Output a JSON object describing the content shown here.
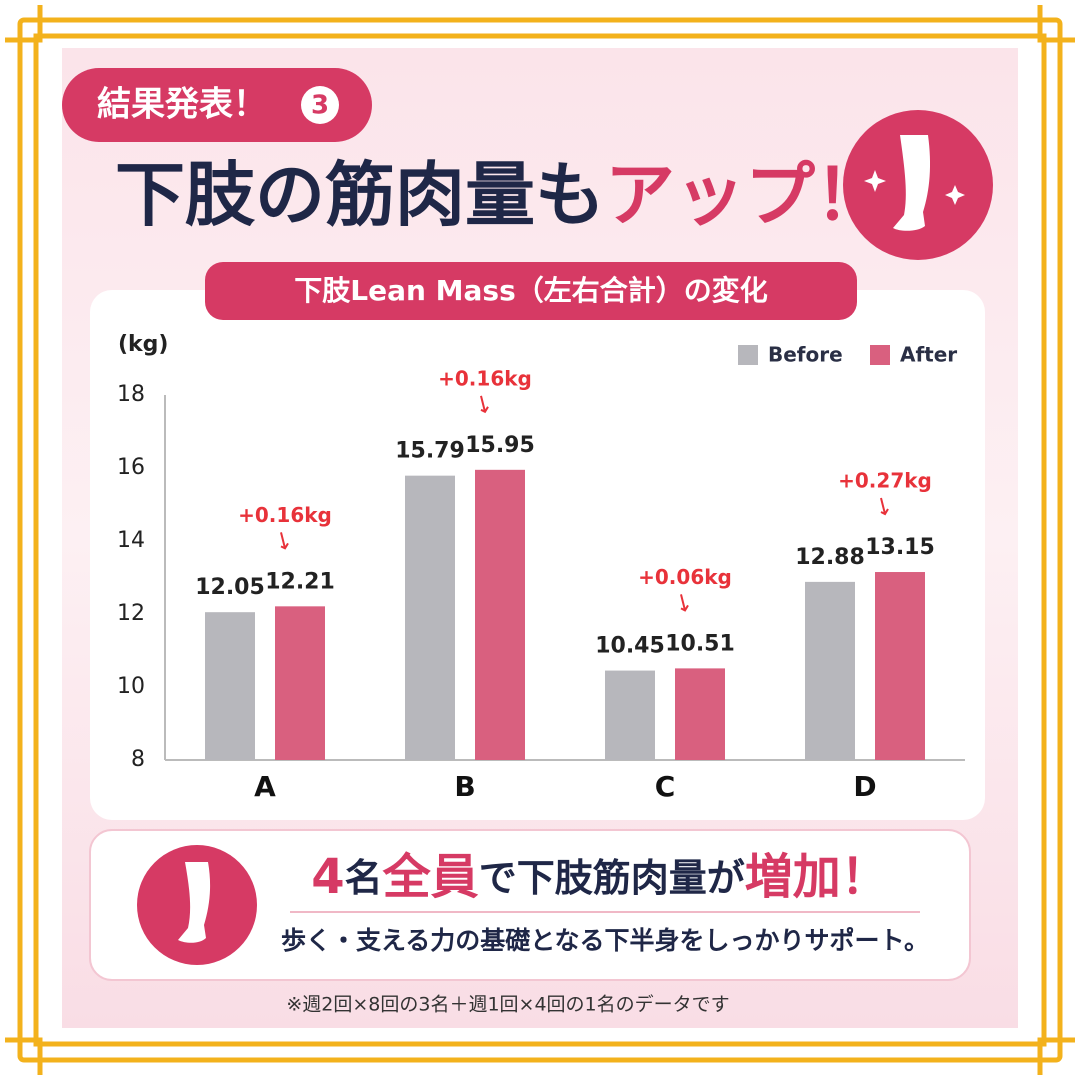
{
  "badge": {
    "text": "結果発表！",
    "number": "3"
  },
  "title": {
    "main": "下肢の筋肉量も",
    "accent": "アップ！"
  },
  "chart_data": {
    "type": "bar",
    "title": "下肢Lean Mass（左右合計）の変化",
    "y_label": "(kg)",
    "categories": [
      "A",
      "B",
      "C",
      "D"
    ],
    "series": [
      {
        "name": "Before",
        "color": "#b7b7bc",
        "values": [
          12.05,
          15.79,
          10.45,
          12.88
        ]
      },
      {
        "name": "After",
        "color": "#d9607f",
        "values": [
          12.21,
          15.95,
          10.51,
          13.15
        ]
      }
    ],
    "annotations": [
      "+0.16kg",
      "+0.16kg",
      "+0.06kg",
      "+0.27kg"
    ],
    "annotation_color": "#e8323a",
    "ylim": [
      8,
      18
    ],
    "yticks": [
      8,
      10,
      12,
      14,
      16,
      18
    ],
    "grid": false,
    "legend": "top-right"
  },
  "summary": {
    "headline": [
      {
        "text": "4",
        "accent": true
      },
      {
        "text": "名",
        "accent": false
      },
      {
        "text": "全員",
        "accent": true
      },
      {
        "text": "で下肢筋肉量が",
        "accent": false
      },
      {
        "text": "増加",
        "accent": true
      },
      {
        "text": "！",
        "accent": true
      }
    ],
    "subtext": "歩く・支える力の基礎となる下半身をしっかりサポート。"
  },
  "footnote": "※週2回×8回の3名＋週1回×4回の1名のデータです"
}
